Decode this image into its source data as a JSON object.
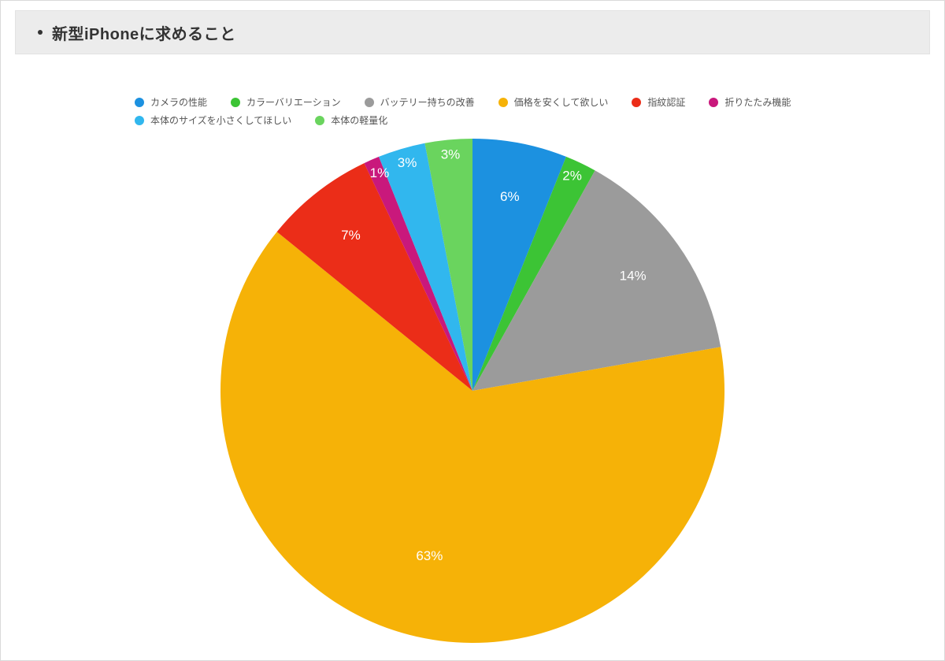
{
  "header": {
    "title": "新型iPhoneに求めること"
  },
  "chart": {
    "type": "pie",
    "background_color": "#ffffff",
    "title_fontsize": 20,
    "title_color": "#333333",
    "title_bg": "#ececec",
    "legend_fontsize": 12,
    "legend_text_color": "#555555",
    "label_fontsize": 17,
    "label_color": "#ffffff",
    "pie_radius": 320,
    "label_radius": 250,
    "start_angle_deg": -90,
    "legend_swatch_shape": "circle",
    "legend_swatch_size": 12,
    "slices": [
      {
        "label": "カメラの性能",
        "value": 6,
        "display": "6%",
        "color": "#1c91e0",
        "small": false
      },
      {
        "label": "カラーバリエーション",
        "value": 2,
        "display": "2%",
        "color": "#3cc435",
        "small": true
      },
      {
        "label": "バッテリー持ちの改善",
        "value": 14,
        "display": "14%",
        "color": "#9b9b9b",
        "small": false
      },
      {
        "label": "価格を安くして欲しい",
        "value": 63,
        "display": "63%",
        "color": "#f6b207",
        "small": false
      },
      {
        "label": "指紋認証",
        "value": 7,
        "display": "7%",
        "color": "#eb2d18",
        "small": false
      },
      {
        "label": "折りたたみ機能",
        "value": 1,
        "display": "1%",
        "color": "#c9187c",
        "small": true
      },
      {
        "label": "本体のサイズを小さくしてほしい",
        "value": 3,
        "display": "3%",
        "color": "#31b7ee",
        "small": true
      },
      {
        "label": "本体の軽量化",
        "value": 3,
        "display": "3%",
        "color": "#6ad45e",
        "small": true
      }
    ]
  }
}
